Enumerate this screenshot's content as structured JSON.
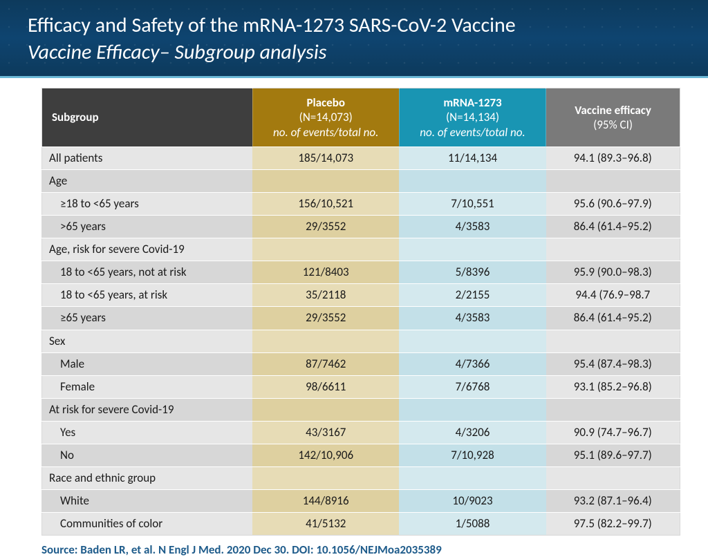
{
  "header": {
    "title": "Efficacy and Safety of the mRNA-1273 SARS-CoV-2 Vaccine",
    "subtitle": "Vaccine Efficacy– Subgroup analysis",
    "bg_gradient_top": "#0d3a5c",
    "bg_gradient_mid": "#0e4470",
    "accent_border": "#6bb8d6"
  },
  "table": {
    "col_widths_pct": [
      33,
      23,
      23,
      21
    ],
    "header_bg": {
      "subgroup": "#3e3e3e",
      "placebo": "#a37a0f",
      "mrna": "#1995b3",
      "efficacy": "#7a7a7a"
    },
    "columns": {
      "subgroup": {
        "label": "Subgroup"
      },
      "placebo": {
        "label": "Placebo",
        "sub": "(N=14,073)",
        "sub2": "no. of events/total no."
      },
      "mrna": {
        "label": "mRNA-1273",
        "sub": "(N=14,134)",
        "sub2": "no. of events/total no."
      },
      "efficacy": {
        "label": "Vaccine efficacy",
        "sub": "(95% CI)"
      }
    },
    "row_colors": {
      "subgroup_odd": "#e6e6e6",
      "subgroup_even": "#d7d7d7",
      "placebo_odd": "#e7dcb6",
      "placebo_even": "#ded0a0",
      "mrna_odd": "#d4e9ee",
      "mrna_even": "#c3e0e8",
      "efficacy_odd": "#e6e6e6",
      "efficacy_even": "#d7d7d7"
    },
    "rows": [
      {
        "label": "All patients",
        "indent": false,
        "placebo": "185/14,073",
        "mrna": "11/14,134",
        "efficacy": "94.1 (89.3–96.8)"
      },
      {
        "label": "Age",
        "indent": false,
        "placebo": "",
        "mrna": "",
        "efficacy": ""
      },
      {
        "label": "≥18 to <65 years",
        "indent": true,
        "placebo": "156/10,521",
        "mrna": "7/10,551",
        "efficacy": "95.6 (90.6–97.9)"
      },
      {
        "label": ">65 years",
        "indent": true,
        "placebo": "29/3552",
        "mrna": "4/3583",
        "efficacy": "86.4 (61.4–95.2)"
      },
      {
        "label": "Age, risk for severe Covid-19",
        "indent": false,
        "placebo": "",
        "mrna": "",
        "efficacy": ""
      },
      {
        "label": "18 to <65 years, not at risk",
        "indent": true,
        "placebo": "121/8403",
        "mrna": "5/8396",
        "efficacy": "95.9 (90.0–98.3)"
      },
      {
        "label": "18 to <65 years, at risk",
        "indent": true,
        "placebo": "35/2118",
        "mrna": "2/2155",
        "efficacy": "94.4 (76.9–98.7"
      },
      {
        "label": "≥65 years",
        "indent": true,
        "placebo": "29/3552",
        "mrna": "4/3583",
        "efficacy": "86.4 (61.4–95.2)"
      },
      {
        "label": "Sex",
        "indent": false,
        "placebo": "",
        "mrna": "",
        "efficacy": ""
      },
      {
        "label": "Male",
        "indent": true,
        "placebo": "87/7462",
        "mrna": "4/7366",
        "efficacy": "95.4 (87.4–98.3)"
      },
      {
        "label": "Female",
        "indent": true,
        "placebo": "98/6611",
        "mrna": "7/6768",
        "efficacy": "93.1 (85.2–96.8)"
      },
      {
        "label": "At risk for severe Covid-19",
        "indent": false,
        "placebo": "",
        "mrna": "",
        "efficacy": ""
      },
      {
        "label": "Yes",
        "indent": true,
        "placebo": "43/3167",
        "mrna": "4/3206",
        "efficacy": "90.9 (74.7–96.7)"
      },
      {
        "label": "No",
        "indent": true,
        "placebo": "142/10,906",
        "mrna": "7/10,928",
        "efficacy": "95.1 (89.6–97.7)"
      },
      {
        "label": "Race and ethnic group",
        "indent": false,
        "placebo": "",
        "mrna": "",
        "efficacy": ""
      },
      {
        "label": "White",
        "indent": true,
        "placebo": "144/8916",
        "mrna": "10/9023",
        "efficacy": "93.2 (87.1–96.4)"
      },
      {
        "label": "Communities of color",
        "indent": true,
        "placebo": "41/5132",
        "mrna": "1/5088",
        "efficacy": "97.5 (82.2–99.7)"
      }
    ]
  },
  "source": "Source: Baden LR, et al. N Engl J Med. 2020 Dec 30. DOI: 10.1056/NEJMoa2035389"
}
